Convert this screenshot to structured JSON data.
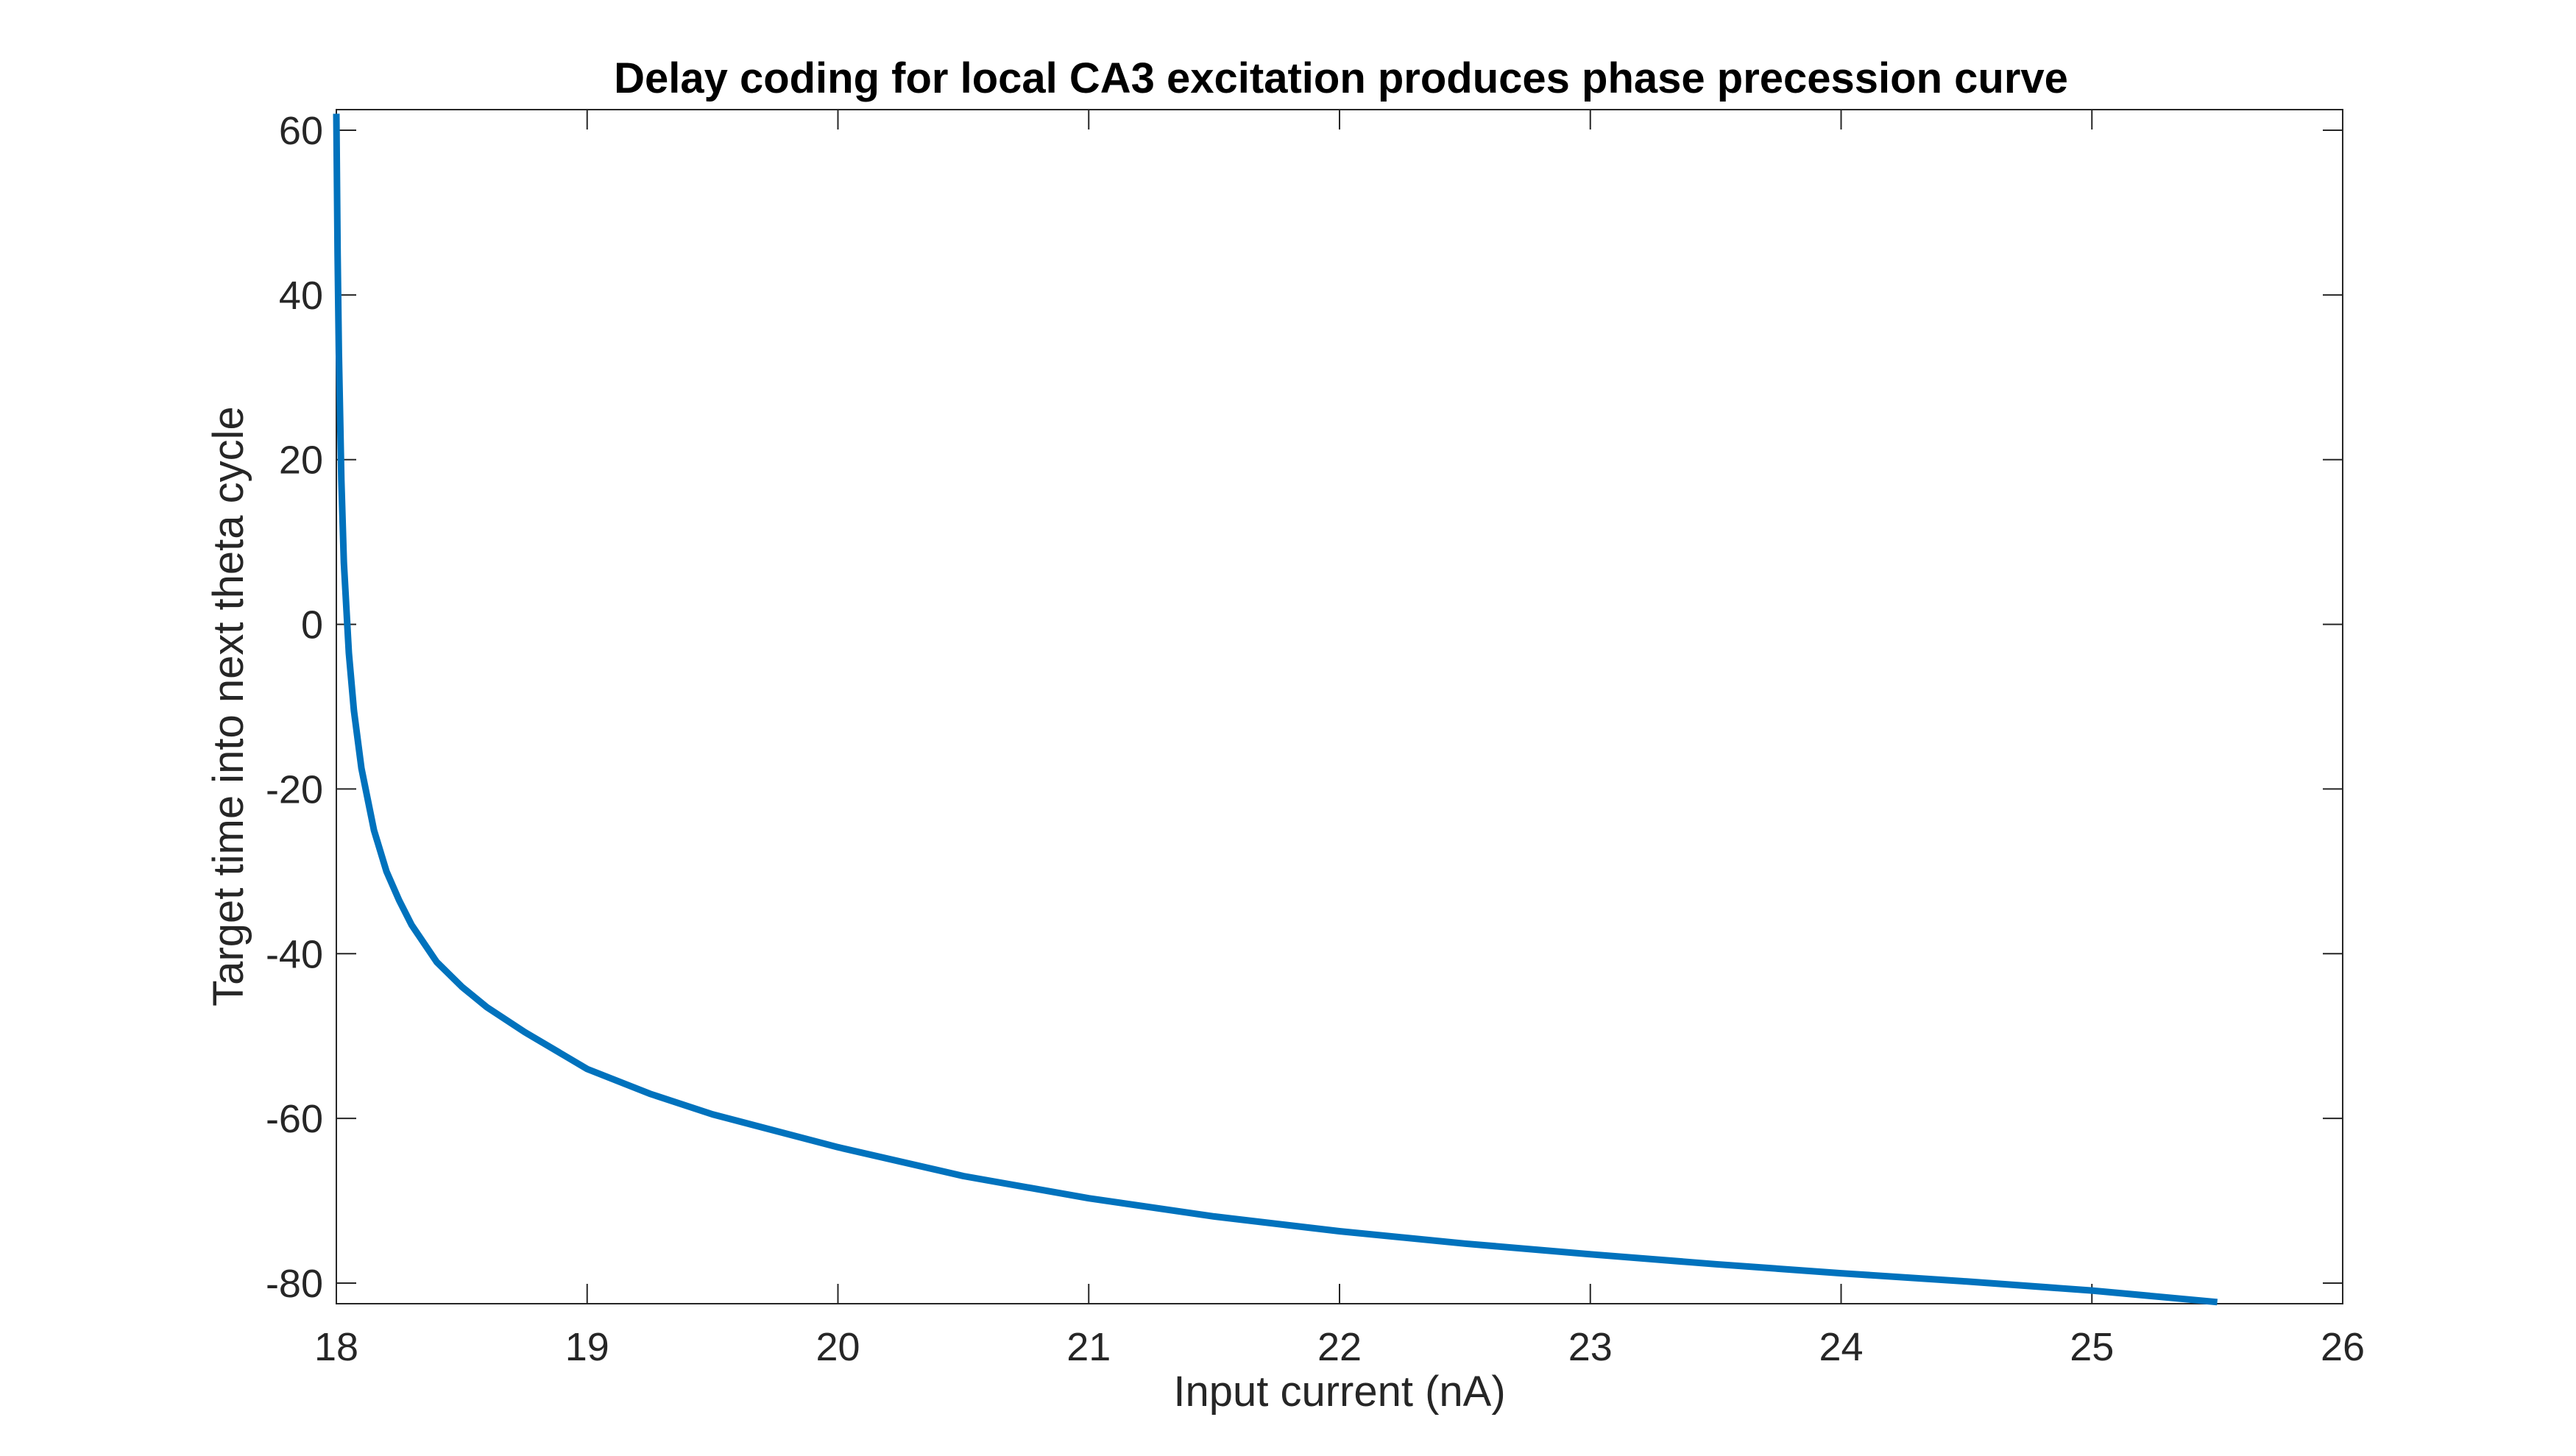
{
  "chart_data": {
    "type": "line",
    "title": "Delay coding for local CA3 excitation produces phase precession curve",
    "xlabel": "Input current (nA)",
    "ylabel": "Target time into next theta cycle",
    "xlim": [
      18,
      26
    ],
    "ylim": [
      -82.5,
      62.5
    ],
    "xticks": [
      18,
      19,
      20,
      21,
      22,
      23,
      24,
      25,
      26
    ],
    "yticks": [
      -80,
      -60,
      -40,
      -20,
      0,
      20,
      40,
      60
    ],
    "xtick_labels": [
      "18",
      "19",
      "20",
      "21",
      "22",
      "23",
      "24",
      "25",
      "26"
    ],
    "ytick_labels": [
      "-80",
      "-60",
      "-40",
      "-20",
      "0",
      "20",
      "40",
      "60"
    ],
    "grid": false,
    "box": true,
    "series": [
      {
        "color": "#0072BD",
        "x": [
          18.0,
          18.005,
          18.01,
          18.02,
          18.03,
          18.05,
          18.07,
          18.1,
          18.15,
          18.2,
          18.25,
          18.3,
          18.4,
          18.5,
          18.6,
          18.75,
          19.0,
          19.25,
          19.5,
          20.0,
          20.5,
          21.0,
          21.5,
          22.0,
          22.5,
          23.0,
          23.5,
          24.0,
          24.5,
          25.0,
          25.5
        ],
        "y": [
          62.0,
          45.0,
          33.0,
          17.5,
          7.5,
          -3.5,
          -10.5,
          -17.5,
          -25.0,
          -30.0,
          -33.5,
          -36.5,
          -41.0,
          -44.0,
          -46.5,
          -49.5,
          -54.0,
          -57.0,
          -59.5,
          -63.5,
          -67.0,
          -69.7,
          -71.9,
          -73.7,
          -75.2,
          -76.5,
          -77.7,
          -78.8,
          -79.8,
          -80.9,
          -82.3
        ]
      }
    ]
  }
}
